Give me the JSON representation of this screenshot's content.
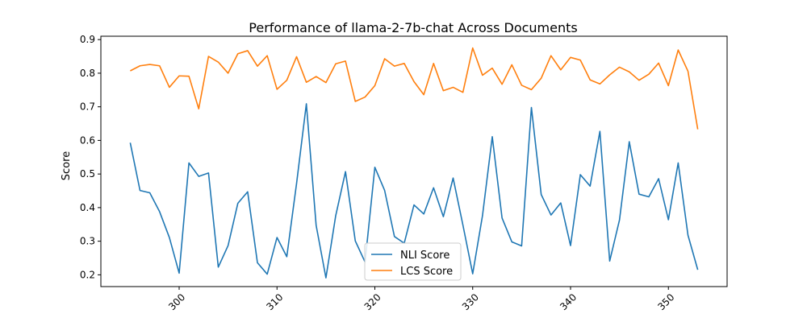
{
  "chart_data": {
    "type": "line",
    "title": "Performance of llama-2-7b-chat Across Documents",
    "xlabel": "",
    "ylabel": "Score",
    "xlim": [
      292,
      356
    ],
    "ylim": [
      0.165,
      0.91
    ],
    "xticks": [
      300,
      310,
      320,
      330,
      340,
      350
    ],
    "yticks": [
      0.2,
      0.3,
      0.4,
      0.5,
      0.6,
      0.7,
      0.8,
      0.9
    ],
    "grid": false,
    "legend_position": "bottom-center",
    "x": [
      295,
      296,
      297,
      298,
      299,
      300,
      301,
      302,
      303,
      304,
      305,
      306,
      307,
      308,
      309,
      310,
      311,
      312,
      313,
      314,
      315,
      316,
      317,
      318,
      319,
      320,
      321,
      322,
      323,
      324,
      325,
      326,
      327,
      328,
      329,
      330,
      331,
      332,
      333,
      334,
      335,
      336,
      337,
      338,
      339,
      340,
      341,
      342,
      343,
      344,
      345,
      346,
      347,
      348,
      349,
      350,
      351,
      352,
      353
    ],
    "series": [
      {
        "name": "NLI Score",
        "color": "#1f77b4",
        "values": [
          0.593,
          0.451,
          0.444,
          0.388,
          0.311,
          0.205,
          0.533,
          0.493,
          0.503,
          0.223,
          0.287,
          0.413,
          0.447,
          0.236,
          0.202,
          0.311,
          0.254,
          0.472,
          0.709,
          0.347,
          0.191,
          0.376,
          0.507,
          0.301,
          0.238,
          0.52,
          0.451,
          0.314,
          0.294,
          0.408,
          0.381,
          0.459,
          0.373,
          0.488,
          0.348,
          0.203,
          0.376,
          0.611,
          0.369,
          0.298,
          0.286,
          0.698,
          0.439,
          0.378,
          0.414,
          0.287,
          0.498,
          0.464,
          0.627,
          0.241,
          0.363,
          0.596,
          0.44,
          0.432,
          0.486,
          0.364,
          0.533,
          0.318,
          0.215
        ]
      },
      {
        "name": "LCS Score",
        "color": "#ff7f0e",
        "values": [
          0.807,
          0.822,
          0.826,
          0.822,
          0.758,
          0.792,
          0.791,
          0.694,
          0.85,
          0.833,
          0.8,
          0.858,
          0.867,
          0.821,
          0.852,
          0.752,
          0.779,
          0.849,
          0.773,
          0.79,
          0.772,
          0.828,
          0.836,
          0.716,
          0.729,
          0.763,
          0.843,
          0.821,
          0.829,
          0.775,
          0.736,
          0.829,
          0.748,
          0.758,
          0.743,
          0.875,
          0.794,
          0.815,
          0.767,
          0.825,
          0.764,
          0.751,
          0.785,
          0.852,
          0.81,
          0.847,
          0.839,
          0.78,
          0.768,
          0.795,
          0.818,
          0.804,
          0.779,
          0.797,
          0.83,
          0.763,
          0.869,
          0.806,
          0.633
        ]
      }
    ]
  }
}
